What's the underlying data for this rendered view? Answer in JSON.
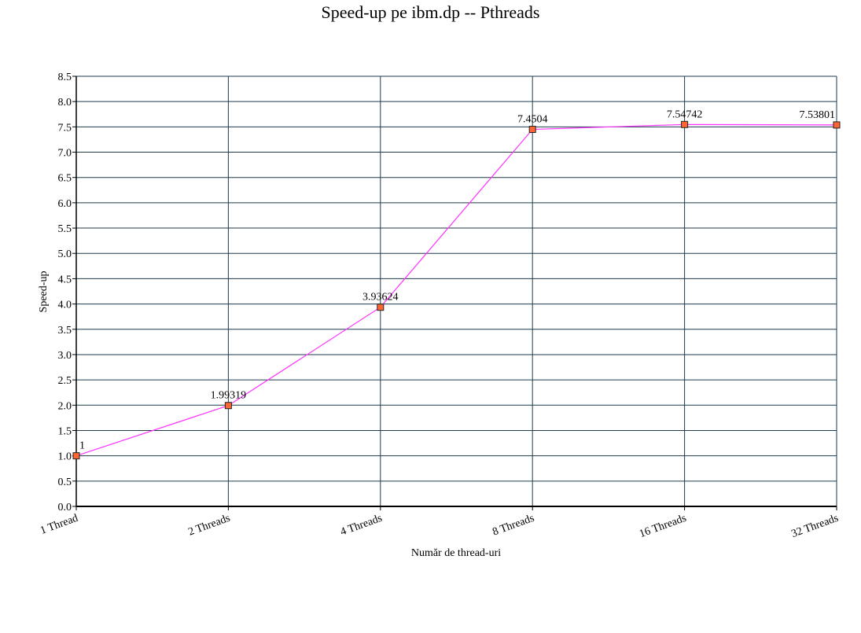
{
  "chart_data": {
    "type": "line",
    "title": "Speed-up pe ibm.dp -- Pthreads",
    "xlabel": "Număr de thread-uri",
    "ylabel": "Speed-up",
    "categories": [
      "1 Thread",
      "2 Threads",
      "4 Threads",
      "8 Threads",
      "16 Threads",
      "32 Threads"
    ],
    "series": [
      {
        "values": [
          1,
          1.99319,
          3.93624,
          7.4504,
          7.54742,
          7.53801
        ],
        "labels": [
          "1",
          "1.99319",
          "3.93624",
          "7.4504",
          "7.54742",
          "7.53801"
        ],
        "line_color": "#ff33ff",
        "marker_color": "#ff6633"
      }
    ],
    "ylim": [
      0,
      8.5
    ],
    "ytick_step": 0.5,
    "grid": true,
    "grid_color": "#1f3a4d"
  }
}
